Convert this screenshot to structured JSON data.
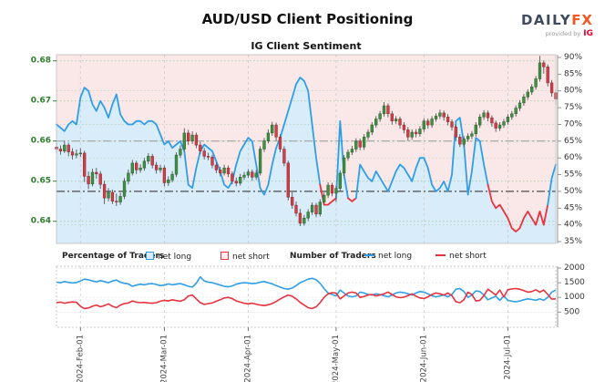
{
  "header": {
    "title": "AUD/USD Client Positioning",
    "subtitle": "IG Client Sentiment",
    "logo": {
      "brand_daily": "DAILY",
      "brand_fx": "FX",
      "provided_by": "provided by",
      "provider": "IG"
    }
  },
  "legend": {
    "percentage_label": "Percentage of Traders",
    "number_label": "Number of Traders",
    "net_long": "net long",
    "net_short": "net short"
  },
  "colors": {
    "long_blue": "#2e9fe6",
    "short_red": "#e8323e",
    "long_area_fill": "#d9ecf9",
    "short_area_fill": "#fae7e7",
    "candle_up": "#3f9142",
    "candle_up_stroke": "#265c2b",
    "candle_down": "#cf3f47",
    "candle_down_stroke": "#8e262e",
    "wick": "#555555",
    "price_axis_green": "#2e7d2e",
    "pct_axis_gray": "#333333",
    "grid_green": "#a8cfa8",
    "grid_gray": "#cccccc",
    "ref_line_50": "#4d4d4d",
    "ref_line_65": "#9a9a9a",
    "brand_navy": "#3f4a5f",
    "brand_orange": "#f25822",
    "provider_red": "#e4002b"
  },
  "axes": {
    "price_ticks": [
      0.68,
      0.67,
      0.66,
      0.65,
      0.64
    ],
    "pct_ticks": [
      90,
      85,
      80,
      75,
      70,
      65,
      60,
      55,
      50,
      45,
      40,
      35
    ],
    "count_ticks": [
      2000,
      1500,
      1000,
      500
    ],
    "months": {
      "labels": [
        "2024-Feb-01",
        "2024-Mar-01",
        "2024-Apr-01",
        "2024-May-01",
        "2024-Jun-01",
        "2024-Jul-01"
      ],
      "indices": [
        6,
        27,
        48,
        70,
        92,
        113
      ]
    }
  },
  "chart_data": [
    {
      "type": "candlestick+line",
      "title": "IG Client Sentiment",
      "price_ylim": [
        0.638,
        0.6815
      ],
      "pct_ylim": [
        35,
        90
      ],
      "grid_pct_lines": [
        40,
        60,
        70,
        80
      ],
      "reference_pct_lines": [
        65,
        50
      ],
      "sentiment_net_long_pct": [
        70,
        69,
        68,
        70,
        71,
        70,
        78,
        81,
        80,
        76,
        74,
        77,
        75,
        72,
        76,
        79,
        73,
        71,
        70,
        70,
        71,
        71,
        70,
        71,
        71,
        70,
        67,
        64,
        65,
        63,
        64,
        65,
        62,
        52,
        51,
        57,
        62,
        64,
        63,
        62,
        59,
        56,
        52,
        51,
        53,
        58,
        62,
        64,
        66,
        65,
        58,
        51,
        49,
        52,
        58,
        63,
        66,
        70,
        74,
        78,
        82,
        84,
        83,
        80,
        70,
        60,
        52,
        46,
        46,
        47,
        48,
        71,
        55,
        48,
        47,
        48,
        58,
        56,
        54,
        53,
        56,
        54,
        52,
        50,
        53,
        56,
        58,
        57,
        55,
        53,
        57,
        60,
        60,
        57,
        52,
        50,
        51,
        53,
        50,
        55,
        71,
        72,
        64,
        49,
        56,
        66,
        65,
        58,
        52,
        47,
        45,
        46,
        44,
        42,
        39,
        38,
        39,
        42,
        44,
        42,
        40,
        44,
        40,
        46,
        54,
        58
      ],
      "candles_ohlc": [
        [
          0.6585,
          0.6598,
          0.6569,
          0.658
        ],
        [
          0.658,
          0.6589,
          0.6566,
          0.6575
        ],
        [
          0.6575,
          0.6601,
          0.657,
          0.659
        ],
        [
          0.659,
          0.6596,
          0.6562,
          0.6573
        ],
        [
          0.6573,
          0.6582,
          0.6554,
          0.6565
        ],
        [
          0.6565,
          0.6579,
          0.6557,
          0.6568
        ],
        [
          0.6568,
          0.6582,
          0.656,
          0.657
        ],
        [
          0.657,
          0.6576,
          0.6498,
          0.6512
        ],
        [
          0.6512,
          0.6524,
          0.648,
          0.6493
        ],
        [
          0.6493,
          0.6531,
          0.6487,
          0.6522
        ],
        [
          0.6522,
          0.6533,
          0.6506,
          0.6518
        ],
        [
          0.6518,
          0.6525,
          0.6481,
          0.6492
        ],
        [
          0.6492,
          0.6501,
          0.6443,
          0.6458
        ],
        [
          0.6458,
          0.6483,
          0.645,
          0.6472
        ],
        [
          0.6472,
          0.6479,
          0.6443,
          0.645
        ],
        [
          0.645,
          0.6469,
          0.6438,
          0.6448
        ],
        [
          0.6448,
          0.6471,
          0.6441,
          0.6462
        ],
        [
          0.6462,
          0.6508,
          0.6455,
          0.65
        ],
        [
          0.65,
          0.6529,
          0.6492,
          0.652
        ],
        [
          0.652,
          0.6553,
          0.6514,
          0.6545
        ],
        [
          0.6545,
          0.6551,
          0.6518,
          0.6528
        ],
        [
          0.6528,
          0.6542,
          0.6521,
          0.6533
        ],
        [
          0.6533,
          0.6558,
          0.6526,
          0.655
        ],
        [
          0.655,
          0.657,
          0.6543,
          0.6562
        ],
        [
          0.6562,
          0.6568,
          0.6532,
          0.654
        ],
        [
          0.654,
          0.6548,
          0.6519,
          0.6528
        ],
        [
          0.6528,
          0.6541,
          0.6521,
          0.6533
        ],
        [
          0.6533,
          0.6539,
          0.6487,
          0.6496
        ],
        [
          0.6496,
          0.6512,
          0.6488,
          0.6503
        ],
        [
          0.6503,
          0.6525,
          0.6497,
          0.6517
        ],
        [
          0.6517,
          0.6572,
          0.651,
          0.6565
        ],
        [
          0.6565,
          0.6589,
          0.6558,
          0.658
        ],
        [
          0.658,
          0.6632,
          0.6574,
          0.662
        ],
        [
          0.662,
          0.6628,
          0.659,
          0.66
        ],
        [
          0.66,
          0.6624,
          0.6593,
          0.6615
        ],
        [
          0.6615,
          0.6621,
          0.6582,
          0.659
        ],
        [
          0.659,
          0.6598,
          0.6567,
          0.6575
        ],
        [
          0.6575,
          0.6583,
          0.6554,
          0.6562
        ],
        [
          0.6562,
          0.6571,
          0.6552,
          0.656
        ],
        [
          0.656,
          0.6566,
          0.6532,
          0.654
        ],
        [
          0.654,
          0.6547,
          0.652,
          0.6528
        ],
        [
          0.6528,
          0.6536,
          0.6512,
          0.652
        ],
        [
          0.652,
          0.6541,
          0.6514,
          0.6533
        ],
        [
          0.6533,
          0.6539,
          0.651,
          0.6518
        ],
        [
          0.6518,
          0.6524,
          0.6492,
          0.65
        ],
        [
          0.65,
          0.6509,
          0.6487,
          0.6495
        ],
        [
          0.6495,
          0.6518,
          0.6489,
          0.651
        ],
        [
          0.651,
          0.6523,
          0.6503,
          0.6515
        ],
        [
          0.6515,
          0.653,
          0.6508,
          0.6523
        ],
        [
          0.6523,
          0.6529,
          0.6501,
          0.651
        ],
        [
          0.651,
          0.6528,
          0.6503,
          0.652
        ],
        [
          0.652,
          0.6587,
          0.6514,
          0.658
        ],
        [
          0.658,
          0.6608,
          0.6573,
          0.66
        ],
        [
          0.66,
          0.6629,
          0.6594,
          0.662
        ],
        [
          0.662,
          0.6648,
          0.6613,
          0.664
        ],
        [
          0.664,
          0.6646,
          0.6601,
          0.661
        ],
        [
          0.661,
          0.6617,
          0.6572,
          0.658
        ],
        [
          0.658,
          0.6587,
          0.6537,
          0.6545
        ],
        [
          0.6545,
          0.6551,
          0.6452,
          0.646
        ],
        [
          0.646,
          0.6472,
          0.6431,
          0.644
        ],
        [
          0.644,
          0.6449,
          0.6412,
          0.642
        ],
        [
          0.642,
          0.6431,
          0.6388,
          0.6395
        ],
        [
          0.6395,
          0.6415,
          0.6389,
          0.6408
        ],
        [
          0.6408,
          0.643,
          0.6401,
          0.6423
        ],
        [
          0.6423,
          0.6447,
          0.6416,
          0.644
        ],
        [
          0.644,
          0.6446,
          0.641,
          0.6418
        ],
        [
          0.6418,
          0.6455,
          0.6412,
          0.6448
        ],
        [
          0.6448,
          0.6472,
          0.6441,
          0.6465
        ],
        [
          0.6465,
          0.6497,
          0.6458,
          0.649
        ],
        [
          0.649,
          0.6496,
          0.6462,
          0.647
        ],
        [
          0.647,
          0.6489,
          0.6448,
          0.6482
        ],
        [
          0.6482,
          0.6527,
          0.6475,
          0.652
        ],
        [
          0.652,
          0.6565,
          0.6513,
          0.6558
        ],
        [
          0.6558,
          0.6579,
          0.6551,
          0.6572
        ],
        [
          0.6572,
          0.6588,
          0.6565,
          0.658
        ],
        [
          0.658,
          0.6607,
          0.6573,
          0.66
        ],
        [
          0.66,
          0.6606,
          0.6577,
          0.6585
        ],
        [
          0.6585,
          0.6617,
          0.6578,
          0.661
        ],
        [
          0.661,
          0.6629,
          0.6603,
          0.6622
        ],
        [
          0.6622,
          0.6647,
          0.6615,
          0.664
        ],
        [
          0.664,
          0.6662,
          0.6633,
          0.6655
        ],
        [
          0.6655,
          0.6675,
          0.6648,
          0.6668
        ],
        [
          0.6668,
          0.6697,
          0.6661,
          0.6688
        ],
        [
          0.6688,
          0.6694,
          0.6659,
          0.6668
        ],
        [
          0.6668,
          0.6675,
          0.6641,
          0.665
        ],
        [
          0.665,
          0.6662,
          0.6643,
          0.6655
        ],
        [
          0.6655,
          0.6661,
          0.6631,
          0.664
        ],
        [
          0.664,
          0.6647,
          0.6619,
          0.6628
        ],
        [
          0.6628,
          0.6635,
          0.6601,
          0.661
        ],
        [
          0.661,
          0.6629,
          0.6603,
          0.6622
        ],
        [
          0.6622,
          0.663,
          0.6609,
          0.6618
        ],
        [
          0.6618,
          0.6637,
          0.6611,
          0.663
        ],
        [
          0.663,
          0.6657,
          0.6623,
          0.665
        ],
        [
          0.665,
          0.6656,
          0.6631,
          0.664
        ],
        [
          0.664,
          0.6662,
          0.6633,
          0.6655
        ],
        [
          0.6655,
          0.6669,
          0.6648,
          0.6662
        ],
        [
          0.6662,
          0.6678,
          0.6655,
          0.667
        ],
        [
          0.667,
          0.6676,
          0.6651,
          0.666
        ],
        [
          0.666,
          0.6667,
          0.6639,
          0.6648
        ],
        [
          0.6648,
          0.6654,
          0.6626,
          0.6635
        ],
        [
          0.6635,
          0.6641,
          0.6601,
          0.661
        ],
        [
          0.661,
          0.6617,
          0.6585,
          0.6592
        ],
        [
          0.6592,
          0.6612,
          0.6585,
          0.6605
        ],
        [
          0.6605,
          0.6619,
          0.6598,
          0.6612
        ],
        [
          0.6612,
          0.6625,
          0.6605,
          0.6618
        ],
        [
          0.6618,
          0.6647,
          0.6611,
          0.664
        ],
        [
          0.664,
          0.6667,
          0.6633,
          0.666
        ],
        [
          0.666,
          0.6677,
          0.6653,
          0.667
        ],
        [
          0.667,
          0.6676,
          0.6649,
          0.6658
        ],
        [
          0.6658,
          0.6664,
          0.6636,
          0.6645
        ],
        [
          0.6645,
          0.6651,
          0.6623,
          0.6632
        ],
        [
          0.6632,
          0.6647,
          0.6625,
          0.664
        ],
        [
          0.664,
          0.6655,
          0.6633,
          0.6648
        ],
        [
          0.6648,
          0.6667,
          0.6641,
          0.666
        ],
        [
          0.666,
          0.6675,
          0.6653,
          0.6668
        ],
        [
          0.6668,
          0.6689,
          0.6661,
          0.6682
        ],
        [
          0.6682,
          0.6702,
          0.6675,
          0.6695
        ],
        [
          0.6695,
          0.6717,
          0.6688,
          0.671
        ],
        [
          0.671,
          0.6729,
          0.6703,
          0.6722
        ],
        [
          0.6722,
          0.6742,
          0.6715,
          0.6735
        ],
        [
          0.6735,
          0.6762,
          0.6728,
          0.6755
        ],
        [
          0.6755,
          0.6812,
          0.6748,
          0.6795
        ],
        [
          0.6795,
          0.6801,
          0.6768,
          0.6785
        ],
        [
          0.6785,
          0.6791,
          0.6736,
          0.6745
        ],
        [
          0.6745,
          0.6752,
          0.6711,
          0.672
        ],
        [
          0.672,
          0.6728,
          0.6691,
          0.6705
        ]
      ]
    },
    {
      "type": "line",
      "ylim": [
        0,
        2000
      ],
      "series": [
        {
          "name": "net long",
          "color_key": "long_blue",
          "values": [
            1520,
            1500,
            1540,
            1510,
            1495,
            1505,
            1560,
            1620,
            1600,
            1560,
            1530,
            1570,
            1540,
            1500,
            1560,
            1590,
            1520,
            1480,
            1460,
            1380,
            1420,
            1450,
            1430,
            1460,
            1470,
            1440,
            1400,
            1420,
            1460,
            1430,
            1450,
            1470,
            1430,
            1380,
            1350,
            1480,
            1700,
            1560,
            1520,
            1500,
            1460,
            1420,
            1380,
            1360,
            1390,
            1450,
            1480,
            1500,
            1490,
            1470,
            1480,
            1520,
            1540,
            1500,
            1460,
            1400,
            1350,
            1300,
            1280,
            1320,
            1400,
            1500,
            1560,
            1620,
            1650,
            1600,
            1480,
            1300,
            1150,
            1100,
            1050,
            1250,
            1150,
            1050,
            1020,
            1050,
            1180,
            1150,
            1100,
            1080,
            1120,
            1100,
            1060,
            1020,
            1080,
            1150,
            1180,
            1160,
            1120,
            1080,
            1150,
            1200,
            1180,
            1120,
            1060,
            1020,
            1050,
            1080,
            1020,
            1100,
            1280,
            1300,
            1200,
            1000,
            1080,
            1220,
            1200,
            1080,
            920,
            980,
            1040,
            900,
            1050,
            900,
            870,
            850,
            880,
            920,
            950,
            930,
            900,
            950,
            900,
            1000,
            1180,
            1250
          ]
        },
        {
          "name": "net short",
          "color_key": "short_red",
          "values": [
            820,
            840,
            800,
            830,
            845,
            835,
            700,
            620,
            640,
            700,
            740,
            680,
            720,
            780,
            700,
            650,
            740,
            790,
            810,
            880,
            840,
            820,
            830,
            810,
            800,
            820,
            870,
            900,
            880,
            920,
            890,
            870,
            920,
            1050,
            1080,
            950,
            820,
            760,
            790,
            810,
            870,
            920,
            980,
            1000,
            960,
            880,
            840,
            800,
            780,
            800,
            770,
            740,
            720,
            750,
            790,
            860,
            940,
            1020,
            1080,
            1040,
            950,
            830,
            740,
            650,
            620,
            680,
            820,
            1000,
            1120,
            1160,
            1150,
            950,
            1050,
            1150,
            1180,
            1150,
            1000,
            1030,
            1080,
            1100,
            1050,
            1080,
            1120,
            1180,
            1100,
            1020,
            990,
            1010,
            1060,
            1120,
            1040,
            980,
            960,
            1020,
            1100,
            1150,
            1120,
            1080,
            1150,
            1060,
            850,
            820,
            920,
            1180,
            1100,
            880,
            900,
            1060,
            1280,
            1180,
            1080,
            1250,
            1020,
            1260,
            1290,
            1300,
            1280,
            1230,
            1180,
            1200,
            1260,
            1180,
            1250,
            1100,
            940,
            950
          ]
        }
      ]
    }
  ]
}
